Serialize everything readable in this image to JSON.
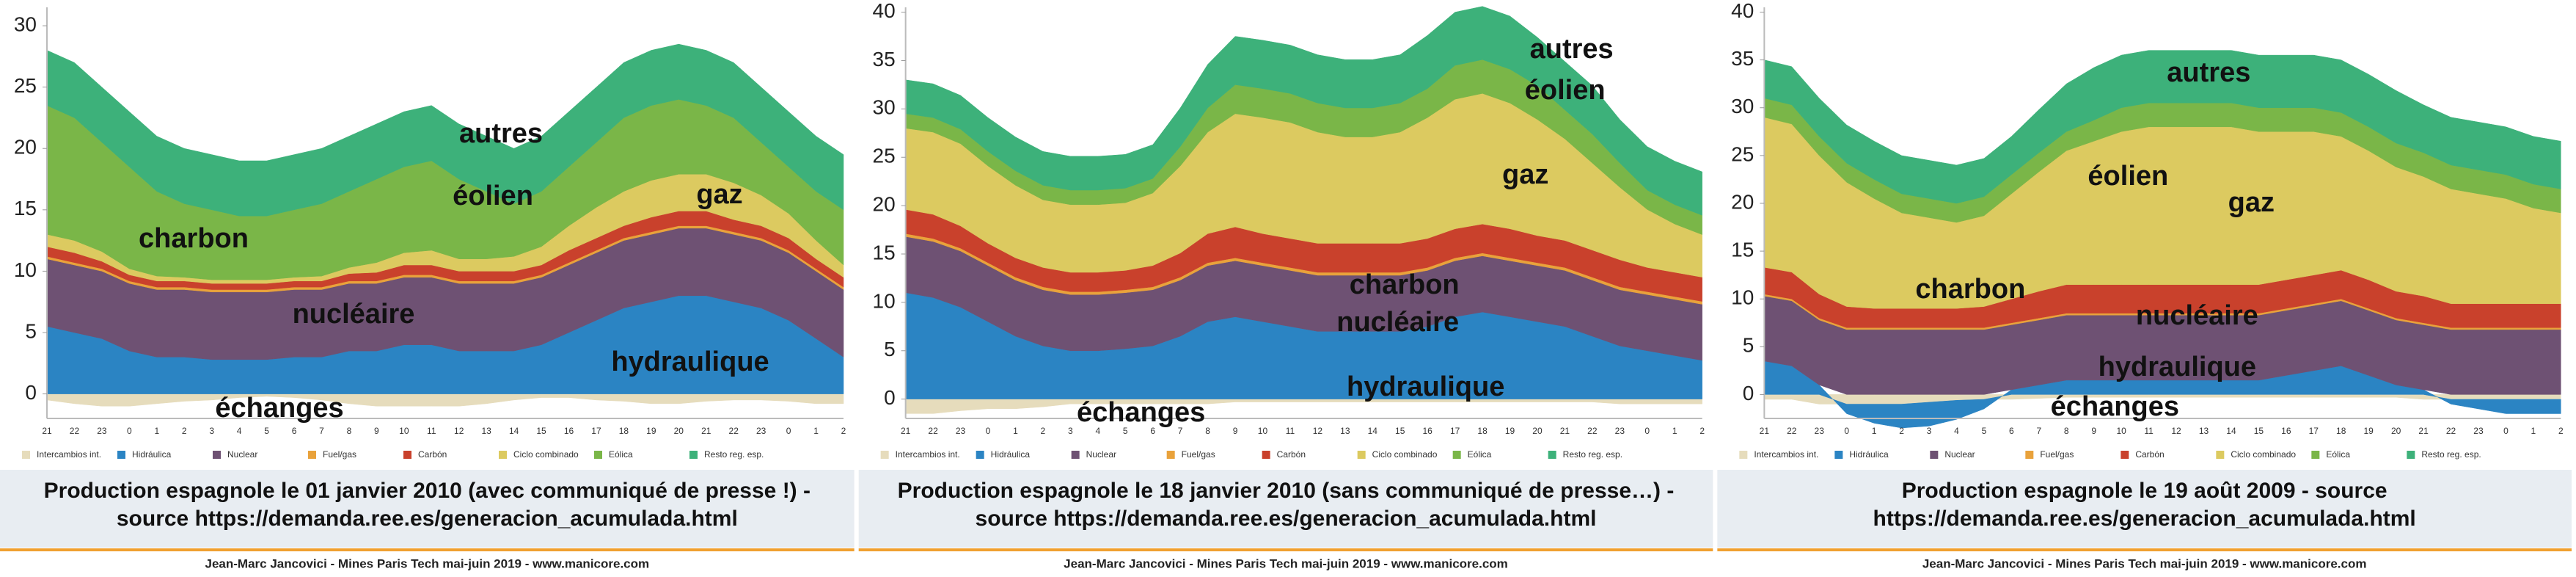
{
  "chart_data": [
    {
      "type": "stacked-area",
      "categories": [
        "21",
        "22",
        "23",
        "0",
        "1",
        "2",
        "3",
        "4",
        "5",
        "6",
        "7",
        "8",
        "9",
        "10",
        "11",
        "12",
        "13",
        "14",
        "15",
        "16",
        "17",
        "18",
        "19",
        "20",
        "21",
        "22",
        "23",
        "0",
        "1",
        "2"
      ],
      "ylim": [
        -2,
        31.5
      ],
      "yticks": [
        0,
        5,
        10,
        15,
        20,
        25,
        30
      ],
      "grid": false,
      "series": [
        {
          "name": "Intercambios int.",
          "color": "#e6dcbc",
          "values": [
            -0.5,
            -0.8,
            -1,
            -1,
            -0.8,
            -0.6,
            -0.5,
            -0.3,
            -0.2,
            -0.3,
            -0.5,
            -0.8,
            -1,
            -1,
            -1,
            -1,
            -0.8,
            -0.5,
            -0.3,
            -0.3,
            -0.5,
            -0.6,
            -0.8,
            -0.8,
            -0.6,
            -0.5,
            -0.5,
            -0.6,
            -0.8,
            -0.8
          ]
        },
        {
          "name": "Hidráulica",
          "color": "#2b84c3",
          "values": [
            5.5,
            5,
            4.5,
            3.5,
            3,
            3,
            2.8,
            2.8,
            2.8,
            3,
            3,
            3.5,
            3.5,
            4,
            4,
            3.5,
            3.5,
            3.5,
            4,
            5,
            6,
            7,
            7.5,
            8,
            8,
            7.5,
            7,
            6,
            4.5,
            3
          ]
        },
        {
          "name": "Nuclear",
          "color": "#6e5173",
          "values": [
            5.5,
            5.5,
            5.5,
            5.5,
            5.5,
            5.5,
            5.5,
            5.5,
            5.5,
            5.5,
            5.5,
            5.5,
            5.5,
            5.5,
            5.5,
            5.5,
            5.5,
            5.5,
            5.5,
            5.5,
            5.5,
            5.5,
            5.5,
            5.5,
            5.5,
            5.5,
            5.5,
            5.5,
            5.5,
            5.5
          ]
        },
        {
          "name": "Fuel/gas",
          "color": "#e9a23b",
          "values": [
            0.2,
            0.2,
            0.2,
            0.2,
            0.2,
            0.2,
            0.2,
            0.2,
            0.2,
            0.2,
            0.2,
            0.2,
            0.2,
            0.2,
            0.2,
            0.2,
            0.2,
            0.2,
            0.2,
            0.2,
            0.2,
            0.2,
            0.2,
            0.2,
            0.2,
            0.2,
            0.2,
            0.2,
            0.2,
            0.2
          ]
        },
        {
          "name": "Carbón",
          "color": "#c9412c",
          "values": [
            0.8,
            0.8,
            0.6,
            0.5,
            0.5,
            0.5,
            0.5,
            0.5,
            0.5,
            0.5,
            0.5,
            0.6,
            0.7,
            0.8,
            0.8,
            0.8,
            0.8,
            0.8,
            0.8,
            1,
            1,
            1,
            1.2,
            1.2,
            1.2,
            1,
            1,
            1,
            0.8,
            0.8
          ]
        },
        {
          "name": "Ciclo combinado",
          "color": "#dcca60",
          "values": [
            1,
            1,
            0.8,
            0.5,
            0.4,
            0.3,
            0.3,
            0.3,
            0.3,
            0.3,
            0.4,
            0.5,
            0.8,
            1,
            1.2,
            1,
            1,
            1.2,
            1.5,
            2,
            2.5,
            2.8,
            3,
            3,
            3,
            3,
            2.5,
            2,
            1.5,
            1
          ]
        },
        {
          "name": "Eólica",
          "color": "#7ab648",
          "values": [
            10.5,
            10,
            8.9,
            8.3,
            6.9,
            6,
            5.7,
            5.2,
            5.2,
            5.5,
            5.9,
            6.2,
            6.8,
            7,
            7.3,
            6.5,
            5.5,
            4.3,
            4.5,
            4.8,
            5.3,
            6,
            6.1,
            6.1,
            5.6,
            5.3,
            4.3,
            3.8,
            4,
            4.5
          ]
        },
        {
          "name": "Resto reg. esp.",
          "color": "#3db17a",
          "values": [
            4.5,
            4.5,
            4.5,
            4.5,
            4.5,
            4.5,
            4.5,
            4.5,
            4.5,
            4.5,
            4.5,
            4.5,
            4.5,
            4.5,
            4.5,
            4.5,
            4.5,
            4.5,
            4.5,
            4.5,
            4.5,
            4.5,
            4.5,
            4.5,
            4.5,
            4.5,
            4.5,
            4.5,
            4.5,
            4.5
          ]
        }
      ],
      "annotations": [
        "autres",
        "éolien",
        "gaz",
        "charbon",
        "nucléaire",
        "hydraulique",
        "échanges"
      ],
      "caption": [
        "Production espagnole le 01 janvier 2010 (avec communiqué de presse !) -",
        "source https://demanda.ree.es/generacion_acumulada.html"
      ],
      "footer": "Jean-Marc Jancovici - Mines Paris Tech mai-juin 2019 - www.manicore.com"
    },
    {
      "type": "stacked-area",
      "categories": [
        "21",
        "22",
        "23",
        "0",
        "1",
        "2",
        "3",
        "4",
        "5",
        "6",
        "7",
        "8",
        "9",
        "10",
        "11",
        "12",
        "13",
        "14",
        "15",
        "16",
        "17",
        "18",
        "19",
        "20",
        "21",
        "22",
        "23",
        "0",
        "1",
        "2"
      ],
      "ylim": [
        -2,
        40.5
      ],
      "yticks": [
        0,
        5,
        10,
        15,
        20,
        25,
        30,
        35,
        40
      ],
      "grid": false,
      "series": [
        {
          "name": "Intercambios int.",
          "color": "#e6dcbc",
          "values": [
            -1.5,
            -1.5,
            -1.2,
            -1,
            -1,
            -0.8,
            -0.5,
            -0.5,
            -0.5,
            -0.5,
            -0.5,
            -0.5,
            -0.3,
            -0.3,
            -0.3,
            -0.3,
            -0.3,
            -0.3,
            -0.3,
            -0.3,
            -0.3,
            -0.3,
            -0.3,
            -0.3,
            -0.3,
            -0.3,
            -0.5,
            -0.5,
            -0.5,
            -0.5
          ]
        },
        {
          "name": "Hidráulica",
          "color": "#2b84c3",
          "values": [
            11,
            10.5,
            9.5,
            8,
            6.5,
            5.5,
            5,
            5,
            5.2,
            5.5,
            6.5,
            8,
            8.5,
            8,
            7.5,
            7,
            7,
            7,
            7,
            7.5,
            8.5,
            9,
            8.5,
            8,
            7.5,
            6.5,
            5.5,
            5,
            4.5,
            4
          ]
        },
        {
          "name": "Nuclear",
          "color": "#6e5173",
          "values": [
            5.8,
            5.8,
            5.8,
            5.8,
            5.8,
            5.8,
            5.8,
            5.8,
            5.8,
            5.8,
            5.8,
            5.8,
            5.8,
            5.8,
            5.8,
            5.8,
            5.8,
            5.8,
            5.8,
            5.8,
            5.8,
            5.8,
            5.8,
            5.8,
            5.8,
            5.8,
            5.8,
            5.8,
            5.8,
            5.8
          ]
        },
        {
          "name": "Fuel/gas",
          "color": "#e9a23b",
          "values": [
            0.3,
            0.3,
            0.3,
            0.3,
            0.3,
            0.3,
            0.3,
            0.3,
            0.3,
            0.3,
            0.3,
            0.3,
            0.3,
            0.3,
            0.3,
            0.3,
            0.3,
            0.3,
            0.3,
            0.3,
            0.3,
            0.3,
            0.3,
            0.3,
            0.3,
            0.3,
            0.3,
            0.3,
            0.3,
            0.3
          ]
        },
        {
          "name": "Carbón",
          "color": "#c9412c",
          "values": [
            2.5,
            2.5,
            2.3,
            2,
            2,
            2,
            2,
            2,
            2,
            2.2,
            2.5,
            3,
            3.2,
            3,
            3,
            3,
            3,
            3,
            3,
            3,
            3,
            3,
            3,
            2.8,
            2.8,
            2.8,
            2.8,
            2.5,
            2.5,
            2.5
          ]
        },
        {
          "name": "Ciclo combinado",
          "color": "#dcca60",
          "values": [
            8.4,
            8.5,
            8.5,
            8,
            7.5,
            7,
            7,
            7,
            7,
            7.5,
            9,
            10.5,
            11.7,
            12,
            12,
            11.5,
            11,
            11,
            11.5,
            12.5,
            13.4,
            13.5,
            13,
            12,
            10.5,
            9,
            7.5,
            6,
            5,
            4.4
          ]
        },
        {
          "name": "Eólica",
          "color": "#7ab648",
          "values": [
            1.5,
            1.5,
            1.5,
            1.5,
            1.5,
            1.5,
            1.5,
            1.5,
            1.5,
            1.5,
            2,
            2.5,
            3,
            3,
            3,
            3,
            3,
            3,
            3,
            3,
            3.5,
            3.5,
            3.5,
            3.5,
            3,
            3,
            2.5,
            2,
            2,
            2
          ]
        },
        {
          "name": "Resto reg. esp.",
          "color": "#3db17a",
          "values": [
            3.5,
            3.5,
            3.5,
            3.5,
            3.5,
            3.5,
            3.5,
            3.5,
            3.5,
            3.5,
            4,
            4.5,
            5,
            5,
            5,
            5,
            5,
            5,
            5,
            5.5,
            5.5,
            5.5,
            5.5,
            5,
            5,
            5,
            4.5,
            4.5,
            4.5,
            4.5
          ]
        }
      ],
      "annotations": [
        "autres",
        "éolien",
        "gaz",
        "charbon",
        "nucléaire",
        "hydraulique",
        "échanges"
      ],
      "caption": [
        "Production espagnole le 18 janvier 2010 (sans communiqué de presse…) -",
        "source https://demanda.ree.es/generacion_acumulada.html"
      ],
      "footer": "Jean-Marc Jancovici - Mines Paris Tech mai-juin 2019 - www.manicore.com"
    },
    {
      "type": "stacked-area",
      "categories": [
        "21",
        "22",
        "23",
        "0",
        "1",
        "2",
        "3",
        "4",
        "5",
        "6",
        "7",
        "8",
        "9",
        "10",
        "11",
        "12",
        "13",
        "14",
        "15",
        "16",
        "17",
        "18",
        "19",
        "20",
        "21",
        "22",
        "23",
        "0",
        "1",
        "2"
      ],
      "ylim": [
        -2.5,
        40.5
      ],
      "yticks": [
        0,
        5,
        10,
        15,
        20,
        25,
        30,
        35,
        40
      ],
      "grid": false,
      "series": [
        {
          "name": "Intercambios int.",
          "color": "#e6dcbc",
          "values": [
            -0.5,
            -0.5,
            -1,
            -1,
            -1,
            -1,
            -0.8,
            -0.6,
            -0.5,
            -0.5,
            -0.4,
            -0.3,
            -0.3,
            -0.3,
            -0.3,
            -0.3,
            -0.3,
            -0.3,
            -0.3,
            -0.3,
            -0.3,
            -0.3,
            -0.3,
            -0.3,
            -0.5,
            -0.5,
            -0.5,
            -0.5,
            -0.5,
            -0.5
          ]
        },
        {
          "name": "Hidráulica",
          "color": "#2b84c3",
          "values": [
            3.5,
            3,
            1,
            -1,
            -2,
            -2.5,
            -2.5,
            -2,
            -1,
            0.5,
            1,
            1.5,
            1.5,
            1.5,
            1.5,
            1.5,
            1.5,
            1.5,
            1.5,
            2,
            2.5,
            3,
            2,
            1,
            0.5,
            -0.5,
            -1,
            -1.5,
            -1.5,
            -1.5
          ]
        },
        {
          "name": "Nuclear",
          "color": "#6e5173",
          "values": [
            6.8,
            6.8,
            6.8,
            6.8,
            6.8,
            6.8,
            6.8,
            6.8,
            6.8,
            6.8,
            6.8,
            6.8,
            6.8,
            6.8,
            6.8,
            6.8,
            6.8,
            6.8,
            6.8,
            6.8,
            6.8,
            6.8,
            6.8,
            6.8,
            6.8,
            6.8,
            6.8,
            6.8,
            6.8,
            6.8
          ]
        },
        {
          "name": "Fuel/gas",
          "color": "#e9a23b",
          "values": [
            0.2,
            0.2,
            0.2,
            0.2,
            0.2,
            0.2,
            0.2,
            0.2,
            0.2,
            0.2,
            0.2,
            0.2,
            0.2,
            0.2,
            0.2,
            0.2,
            0.2,
            0.2,
            0.2,
            0.2,
            0.2,
            0.2,
            0.2,
            0.2,
            0.2,
            0.2,
            0.2,
            0.2,
            0.2,
            0.2
          ]
        },
        {
          "name": "Carbón",
          "color": "#c9412c",
          "values": [
            2.8,
            2.8,
            2.5,
            2.2,
            2,
            2,
            2,
            2,
            2.2,
            2.5,
            2.8,
            3,
            3,
            3,
            3,
            3,
            3,
            3,
            3,
            3,
            3,
            3,
            3,
            2.8,
            2.8,
            2.5,
            2.5,
            2.5,
            2.5,
            2.5
          ]
        },
        {
          "name": "Ciclo combinado",
          "color": "#dcca60",
          "values": [
            15.7,
            15.5,
            14.5,
            13,
            11.5,
            10,
            9.5,
            9,
            9.5,
            11,
            12.5,
            14,
            15,
            16,
            16.5,
            16.5,
            16.5,
            16.5,
            16,
            15.5,
            15,
            14,
            13.5,
            13,
            12.5,
            12,
            11.5,
            11,
            10,
            9.5
          ]
        },
        {
          "name": "Eólica",
          "color": "#7ab648",
          "values": [
            2,
            2,
            2,
            2,
            2,
            2,
            2,
            2,
            2,
            2,
            2,
            2,
            2.2,
            2.5,
            2.5,
            2.5,
            2.5,
            2.5,
            2.5,
            2.5,
            2.5,
            2.5,
            2.5,
            2.5,
            2.5,
            2.5,
            2.5,
            2.5,
            2.5,
            2.5
          ]
        },
        {
          "name": "Resto reg. esp.",
          "color": "#3db17a",
          "values": [
            4,
            4,
            4,
            4,
            4,
            4,
            4,
            4,
            4,
            4,
            4.5,
            5,
            5.5,
            5.5,
            5.5,
            5.5,
            5.5,
            5.5,
            5.5,
            5.5,
            5.5,
            5.5,
            5.5,
            5.5,
            5,
            5,
            5,
            5,
            5,
            5
          ]
        }
      ],
      "annotations": [
        "autres",
        "éolien",
        "gaz",
        "charbon",
        "nucléaire",
        "hydraulique",
        "échanges"
      ],
      "caption": [
        "Production espagnole le 19 août 2009 - source",
        "https://demanda.ree.es/generacion_acumulada.html"
      ],
      "footer": "Jean-Marc Jancovici - Mines Paris Tech mai-juin 2019 - www.manicore.com"
    }
  ]
}
